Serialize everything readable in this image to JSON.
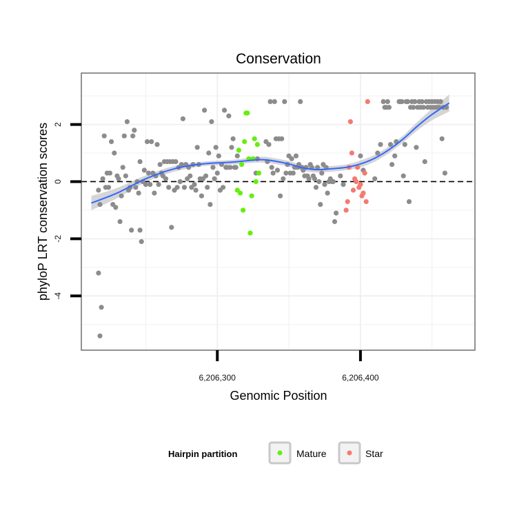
{
  "chart_data": {
    "type": "scatter",
    "title": "Conservation",
    "xlabel": "Genomic Position",
    "ylabel": "phyloP LRT conservation scores",
    "xlim": [
      6206205,
      6206480
    ],
    "ylim": [
      -5.9,
      3.8
    ],
    "x_ticks": [
      6206300,
      6206400
    ],
    "x_tick_labels": [
      "6,206,300",
      "6,206,400"
    ],
    "y_ticks": [
      -4,
      -2,
      0,
      2
    ],
    "y_tick_labels": [
      "-4",
      "-2",
      "0",
      "2"
    ],
    "grid": true,
    "reference_line": {
      "y": 0,
      "style": "dashed"
    },
    "colors": {
      "other": "#8c8c8c",
      "Mature": "#66ee11",
      "Star": "#f47a70",
      "smooth": "#3366ff",
      "ribbon": "#c7c7c7",
      "panel_border": "#777777",
      "grid": "#f0f0f0"
    },
    "legend": {
      "title": "Hairpin partition",
      "position": "bottom",
      "entries": [
        {
          "label": "Mature",
          "color": "#66ee11"
        },
        {
          "label": "Star",
          "color": "#f47a70"
        }
      ]
    },
    "series": [
      {
        "name": "Other",
        "points": [
          [
            6206217,
            -0.3
          ],
          [
            6206217,
            -3.2
          ],
          [
            6206218,
            -0.8
          ],
          [
            6206218,
            -5.4
          ],
          [
            6206219,
            -4.4
          ],
          [
            6206220,
            0.1
          ],
          [
            6206221,
            1.6
          ],
          [
            6206222,
            -0.2
          ],
          [
            6206223,
            0.3
          ],
          [
            6206224,
            -0.2
          ],
          [
            6206225,
            0.3
          ],
          [
            6206226,
            1.4
          ],
          [
            6206227,
            -0.8
          ],
          [
            6206228,
            1
          ],
          [
            6206229,
            -0.9
          ],
          [
            6206230,
            0.2
          ],
          [
            6206231,
            0.1
          ],
          [
            6206232,
            -1.4
          ],
          [
            6206233,
            -0.5
          ],
          [
            6206234,
            0.5
          ],
          [
            6206235,
            1.6
          ],
          [
            6206236,
            0.2
          ],
          [
            6206237,
            2.1
          ],
          [
            6206238,
            -0.3
          ],
          [
            6206239,
            -0.2
          ],
          [
            6206240,
            -1.7
          ],
          [
            6206241,
            1.6
          ],
          [
            6206242,
            1.8
          ],
          [
            6206243,
            -0.2
          ],
          [
            6206244,
            0
          ],
          [
            6206245,
            -0.4
          ],
          [
            6206246,
            -1.7
          ],
          [
            6206246,
            0.7
          ],
          [
            6206247,
            -2.1
          ],
          [
            6206248,
            0
          ],
          [
            6206249,
            0.4
          ],
          [
            6206250,
            -0.1
          ],
          [
            6206251,
            1.4
          ],
          [
            6206252,
            0.3
          ],
          [
            6206253,
            -0.1
          ],
          [
            6206254,
            1.4
          ],
          [
            6206255,
            0.3
          ],
          [
            6206256,
            -0.4
          ],
          [
            6206257,
            0.2
          ],
          [
            6206258,
            1.3
          ],
          [
            6206259,
            -0.1
          ],
          [
            6206260,
            0.6
          ],
          [
            6206261,
            0.3
          ],
          [
            6206262,
            0.2
          ],
          [
            6206263,
            0.7
          ],
          [
            6206264,
            0.1
          ],
          [
            6206265,
            0.7
          ],
          [
            6206266,
            -0.2
          ],
          [
            6206267,
            0.7
          ],
          [
            6206268,
            -1.6
          ],
          [
            6206269,
            0.7
          ],
          [
            6206270,
            -0.3
          ],
          [
            6206271,
            0.7
          ],
          [
            6206272,
            -0.2
          ],
          [
            6206273,
            0.5
          ],
          [
            6206274,
            0
          ],
          [
            6206275,
            0.6
          ],
          [
            6206276,
            2.2
          ],
          [
            6206277,
            -0.2
          ],
          [
            6206278,
            0.6
          ],
          [
            6206279,
            0.1
          ],
          [
            6206280,
            0.5
          ],
          [
            6206281,
            0.2
          ],
          [
            6206282,
            -0.2
          ],
          [
            6206283,
            0.6
          ],
          [
            6206284,
            -0.1
          ],
          [
            6206285,
            -0.3
          ],
          [
            6206286,
            1.2
          ],
          [
            6206287,
            0.6
          ],
          [
            6206288,
            0.1
          ],
          [
            6206289,
            -0.5
          ],
          [
            6206290,
            0.1
          ],
          [
            6206291,
            2.5
          ],
          [
            6206292,
            0.2
          ],
          [
            6206293,
            -0.2
          ],
          [
            6206294,
            1
          ],
          [
            6206295,
            -0.8
          ],
          [
            6206296,
            2.1
          ],
          [
            6206297,
            0.5
          ],
          [
            6206298,
            0.1
          ],
          [
            6206299,
            1.2
          ],
          [
            6206300,
            0.3
          ],
          [
            6206301,
            0.9
          ],
          [
            6206302,
            -0.3
          ],
          [
            6206303,
            0.6
          ],
          [
            6206304,
            -0.2
          ],
          [
            6206305,
            2.5
          ],
          [
            6206306,
            0.5
          ],
          [
            6206307,
            0.5
          ],
          [
            6206308,
            2.3
          ],
          [
            6206309,
            0.5
          ],
          [
            6206310,
            1.2
          ],
          [
            6206311,
            1.5
          ],
          [
            6206312,
            0.5
          ],
          [
            6206313,
            0.5
          ],
          [
            6206314,
            0.9
          ],
          [
            6206327,
            0.3
          ],
          [
            6206328,
            0.8
          ],
          [
            6206334,
            1.4
          ],
          [
            6206335,
            0.7
          ],
          [
            6206336,
            1.3
          ],
          [
            6206337,
            2.8
          ],
          [
            6206338,
            0.5
          ],
          [
            6206339,
            0.3
          ],
          [
            6206340,
            2.8
          ],
          [
            6206341,
            1.5
          ],
          [
            6206342,
            0.4
          ],
          [
            6206343,
            1.5
          ],
          [
            6206344,
            -0.5
          ],
          [
            6206345,
            1.5
          ],
          [
            6206346,
            0.1
          ],
          [
            6206347,
            2.8
          ],
          [
            6206348,
            0.3
          ],
          [
            6206349,
            0.6
          ],
          [
            6206350,
            0.9
          ],
          [
            6206351,
            0.3
          ],
          [
            6206352,
            0.8
          ],
          [
            6206353,
            0.3
          ],
          [
            6206354,
            0.5
          ],
          [
            6206355,
            0.9
          ],
          [
            6206356,
            0.5
          ],
          [
            6206357,
            0.6
          ],
          [
            6206358,
            2.8
          ],
          [
            6206359,
            0.5
          ],
          [
            6206360,
            0.4
          ],
          [
            6206361,
            0.2
          ],
          [
            6206362,
            0.5
          ],
          [
            6206363,
            0.2
          ],
          [
            6206364,
            0.1
          ],
          [
            6206365,
            0.6
          ],
          [
            6206366,
            0.5
          ],
          [
            6206367,
            0.2
          ],
          [
            6206368,
            0.1
          ],
          [
            6206369,
            -0.2
          ],
          [
            6206370,
            0.5
          ],
          [
            6206371,
            0
          ],
          [
            6206372,
            -0.8
          ],
          [
            6206373,
            0.3
          ],
          [
            6206374,
            0.6
          ],
          [
            6206375,
            -0.1
          ],
          [
            6206376,
            0.5
          ],
          [
            6206377,
            -0.4
          ],
          [
            6206378,
            0
          ],
          [
            6206379,
            0.1
          ],
          [
            6206380,
            0
          ],
          [
            6206381,
            0
          ],
          [
            6206382,
            -1.4
          ],
          [
            6206383,
            -1.1
          ],
          [
            6206386,
            0.2
          ],
          [
            6206388,
            -0.1
          ],
          [
            6206400,
            0.9
          ],
          [
            6206402,
            0.4
          ],
          [
            6206410,
            0.1
          ],
          [
            6206412,
            1
          ],
          [
            6206414,
            1.3
          ],
          [
            6206416,
            2.8
          ],
          [
            6206417,
            2.6
          ],
          [
            6206418,
            2.6
          ],
          [
            6206420,
            2.6
          ],
          [
            6206419,
            2.8
          ],
          [
            6206421,
            1.3
          ],
          [
            6206422,
            0.6
          ],
          [
            6206424,
            0.9
          ],
          [
            6206425,
            1.4
          ],
          [
            6206427,
            2.8
          ],
          [
            6206428,
            2.8
          ],
          [
            6206429,
            2.8
          ],
          [
            6206430,
            0.2
          ],
          [
            6206431,
            1.3
          ],
          [
            6206432,
            2.8
          ],
          [
            6206433,
            2.8
          ],
          [
            6206434,
            -0.7
          ],
          [
            6206435,
            2.6
          ],
          [
            6206436,
            2.8
          ],
          [
            6206437,
            2.6
          ],
          [
            6206438,
            2.8
          ],
          [
            6206439,
            1.2
          ],
          [
            6206440,
            2.6
          ],
          [
            6206441,
            2.8
          ],
          [
            6206442,
            2.6
          ],
          [
            6206443,
            2.8
          ],
          [
            6206444,
            2.6
          ],
          [
            6206445,
            0.7
          ],
          [
            6206446,
            2.8
          ],
          [
            6206447,
            2.6
          ],
          [
            6206448,
            2.8
          ],
          [
            6206449,
            2.6
          ],
          [
            6206450,
            2.8
          ],
          [
            6206451,
            2.6
          ],
          [
            6206452,
            2.8
          ],
          [
            6206453,
            2.6
          ],
          [
            6206454,
            2.8
          ],
          [
            6206455,
            2.6
          ],
          [
            6206456,
            2.8
          ],
          [
            6206457,
            1.5
          ],
          [
            6206458,
            2.6
          ],
          [
            6206459,
            0.3
          ],
          [
            6206460,
            2.6
          ]
        ]
      },
      {
        "name": "Mature",
        "points": [
          [
            6206314,
            -0.3
          ],
          [
            6206315,
            1.1
          ],
          [
            6206316,
            -0.4
          ],
          [
            6206317,
            0.6
          ],
          [
            6206318,
            -1
          ],
          [
            6206319,
            1.4
          ],
          [
            6206320,
            2.4
          ],
          [
            6206321,
            2.4
          ],
          [
            6206322,
            0.8
          ],
          [
            6206323,
            -1.8
          ],
          [
            6206324,
            -0.5
          ],
          [
            6206325,
            0.8
          ],
          [
            6206326,
            1.5
          ],
          [
            6206327,
            0
          ],
          [
            6206328,
            1.3
          ],
          [
            6206329,
            0.3
          ]
        ]
      },
      {
        "name": "Star",
        "points": [
          [
            6206390,
            -1
          ],
          [
            6206391,
            -0.7
          ],
          [
            6206392,
            0.5
          ],
          [
            6206393,
            2.1
          ],
          [
            6206394,
            1
          ],
          [
            6206395,
            -0.3
          ],
          [
            6206396,
            0.1
          ],
          [
            6206397,
            0
          ],
          [
            6206398,
            0.5
          ],
          [
            6206399,
            -0.2
          ],
          [
            6206400,
            -0.1
          ],
          [
            6206401,
            -0.5
          ],
          [
            6206402,
            -0.4
          ],
          [
            6206403,
            0.3
          ],
          [
            6206404,
            -0.7
          ],
          [
            6206405,
            2.8
          ]
        ]
      }
    ],
    "smooth": {
      "method": "loess",
      "x": [
        6206212,
        6206230,
        6206250,
        6206270,
        6206290,
        6206310,
        6206330,
        6206340,
        6206350,
        6206360,
        6206370,
        6206380,
        6206390,
        6206400,
        6206410,
        6206420,
        6206430,
        6206440,
        6206450,
        6206462
      ],
      "y": [
        -0.75,
        -0.4,
        0.1,
        0.45,
        0.62,
        0.68,
        0.77,
        0.72,
        0.62,
        0.48,
        0.42,
        0.45,
        0.5,
        0.62,
        0.82,
        1.12,
        1.5,
        1.95,
        2.35,
        2.75
      ],
      "ci_halfwidth": [
        0.25,
        0.18,
        0.12,
        0.1,
        0.08,
        0.08,
        0.1,
        0.1,
        0.1,
        0.1,
        0.1,
        0.1,
        0.1,
        0.12,
        0.12,
        0.12,
        0.12,
        0.15,
        0.2,
        0.3
      ]
    }
  }
}
